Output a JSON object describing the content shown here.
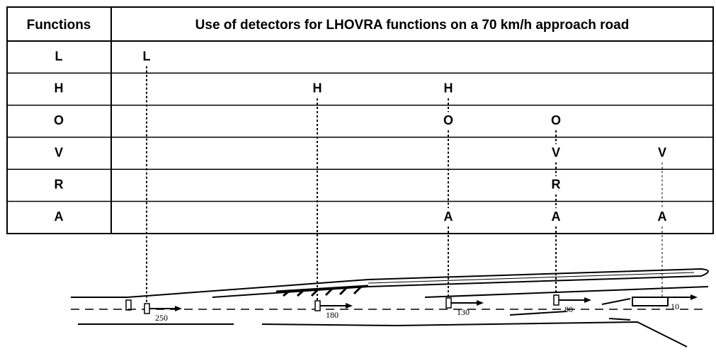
{
  "table": {
    "header": [
      "Functions",
      "Use of detectors for LHOVRA functions on a 70 km/h approach road"
    ],
    "rows": [
      {
        "label": "L",
        "cells": [
          "L",
          null,
          null,
          null,
          null
        ]
      },
      {
        "label": "H",
        "cells": [
          null,
          "H",
          "H",
          null,
          null
        ]
      },
      {
        "label": "O",
        "cells": [
          null,
          null,
          "O",
          "O",
          null
        ]
      },
      {
        "label": "V",
        "cells": [
          null,
          null,
          null,
          "V",
          "V"
        ]
      },
      {
        "label": "R",
        "cells": [
          null,
          null,
          null,
          "R",
          null
        ]
      },
      {
        "label": "A",
        "cells": [
          null,
          null,
          "A",
          "A",
          "A"
        ]
      }
    ]
  },
  "road": {
    "distances": [
      "250",
      "180",
      "130",
      "80",
      "10"
    ]
  }
}
